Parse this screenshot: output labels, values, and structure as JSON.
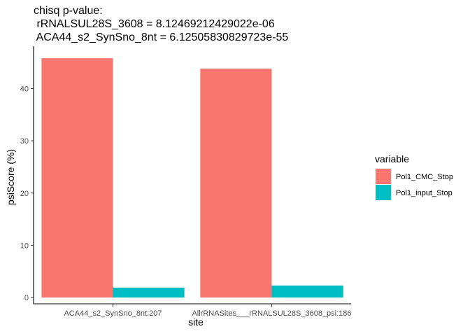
{
  "chart_data": {
    "type": "bar",
    "title_lines": [
      "chisq p-value:",
      " rRNALSUL28S_3608 = 8.12469212429022e-06",
      " ACA44_s2_SynSno_8nt = 6.12505830829723e-55"
    ],
    "xlabel": "site",
    "ylabel": "psiScore (%)",
    "categories": [
      "ACA44_s2_SynSno_8nt:207",
      "AllrRNASites___rRNALSUL28S_3608_psi:186"
    ],
    "series": [
      {
        "name": "Pol1_CMC_Stop",
        "color": "#F8766D",
        "values": [
          45.8,
          43.8
        ]
      },
      {
        "name": "Pol1_input_Stop",
        "color": "#00BFC4",
        "values": [
          1.9,
          2.3
        ]
      }
    ],
    "ylim": [
      -1.2,
      48.1
    ],
    "yticks": [
      0,
      10,
      20,
      30,
      40
    ],
    "grid": false,
    "legend": {
      "title": "variable",
      "placement": "right"
    }
  }
}
